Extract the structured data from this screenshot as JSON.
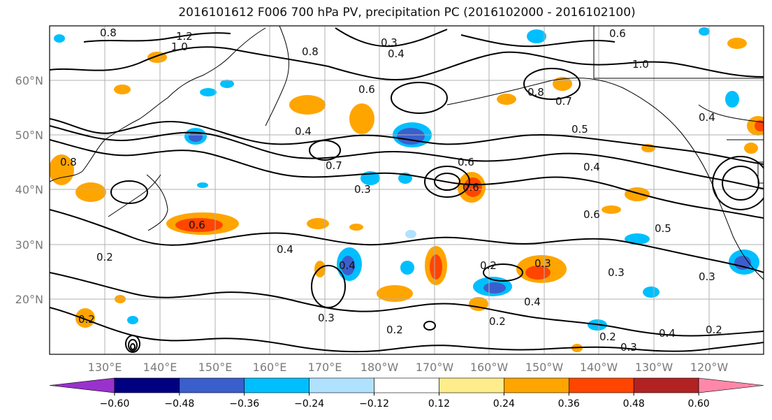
{
  "title": "2016101612 F006 700 hPa PV, precipitation PC (2016102000 - 2016102100)",
  "map": {
    "lat_ticks": [
      "60°N",
      "50°N",
      "40°N",
      "30°N",
      "20°N"
    ],
    "lon_ticks": [
      "130°E",
      "140°E",
      "150°E",
      "160°E",
      "170°E",
      "180°W",
      "170°W",
      "160°W",
      "150°W",
      "140°W",
      "130°W",
      "120°W"
    ],
    "contour_labels": [
      {
        "text": "0.8"
      },
      {
        "text": "1.2"
      },
      {
        "text": "1.0"
      },
      {
        "text": "0.8"
      },
      {
        "text": "0.3"
      },
      {
        "text": "0.4"
      },
      {
        "text": "0.6"
      },
      {
        "text": "0.4"
      },
      {
        "text": "0.7"
      },
      {
        "text": "0.3"
      },
      {
        "text": "0.6"
      },
      {
        "text": "0.4"
      },
      {
        "text": "0.6"
      },
      {
        "text": "0.5"
      },
      {
        "text": "0.4"
      },
      {
        "text": "0.2"
      },
      {
        "text": "0.3"
      },
      {
        "text": "0.2"
      },
      {
        "text": "0.2"
      },
      {
        "text": "0.3"
      },
      {
        "text": "0.4"
      },
      {
        "text": "0.2"
      },
      {
        "text": "0.8"
      },
      {
        "text": "0.7"
      },
      {
        "text": "1.0"
      },
      {
        "text": "0.6"
      },
      {
        "text": "0.5"
      },
      {
        "text": "0.4"
      },
      {
        "text": "0.2"
      },
      {
        "text": "0.2"
      },
      {
        "text": "0.4"
      },
      {
        "text": "0.3"
      },
      {
        "text": "0.2"
      },
      {
        "text": "0.6"
      },
      {
        "text": "0.8"
      },
      {
        "text": "0.4"
      },
      {
        "text": "0.3"
      },
      {
        "text": "0.3"
      },
      {
        "text": "0.6"
      }
    ]
  },
  "colorbar": {
    "colors": [
      "#9932cc",
      "#000080",
      "#3a5fcd",
      "#00bfff",
      "#b0e2ff",
      "#ffffff",
      "#ffec8b",
      "#ffa500",
      "#ff4500",
      "#b22222",
      "#ff88aa"
    ],
    "labels": [
      "−0.60",
      "−0.48",
      "−0.36",
      "−0.24",
      "−0.12",
      "0.12",
      "0.24",
      "0.36",
      "0.48",
      "0.60"
    ]
  }
}
